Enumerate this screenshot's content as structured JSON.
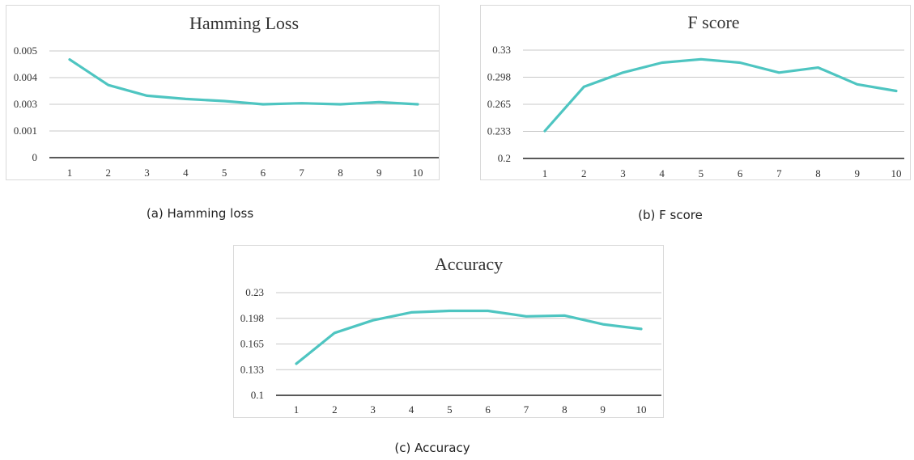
{
  "chart_data": [
    {
      "type": "line",
      "title": "Hamming Loss",
      "caption": "(a) Hamming loss",
      "categories": [
        "1",
        "2",
        "3",
        "4",
        "5",
        "6",
        "7",
        "8",
        "9",
        "10"
      ],
      "ytick_labels": [
        "0",
        "0.001",
        "0.003",
        "0.004",
        "0.005"
      ],
      "ylim": [
        0,
        0.005
      ],
      "series": [
        {
          "values": [
            0.0046,
            0.0034,
            0.0029,
            0.00275,
            0.00265,
            0.0025,
            0.00255,
            0.0025,
            0.0026,
            0.0025
          ]
        }
      ],
      "grid": true,
      "line_color": "#4ec5c1"
    },
    {
      "type": "line",
      "title": "F score",
      "caption": "(b)  F score",
      "categories": [
        "1",
        "2",
        "3",
        "4",
        "5",
        "6",
        "7",
        "8",
        "9",
        "10"
      ],
      "ytick_labels": [
        "0.2",
        "0.233",
        "0.265",
        "0.298",
        "0.33"
      ],
      "ylim": [
        0.2,
        0.33
      ],
      "series": [
        {
          "values": [
            0.233,
            0.286,
            0.303,
            0.315,
            0.319,
            0.315,
            0.303,
            0.309,
            0.289,
            0.281
          ]
        }
      ],
      "grid": true,
      "line_color": "#4ec5c1"
    },
    {
      "type": "line",
      "title": "Accuracy",
      "caption": "(c) Accuracy",
      "categories": [
        "1",
        "2",
        "3",
        "4",
        "5",
        "6",
        "7",
        "8",
        "9",
        "10"
      ],
      "ytick_labels": [
        "0.1",
        "0.133",
        "0.165",
        "0.198",
        "0.23"
      ],
      "ylim": [
        0.1,
        0.23
      ],
      "series": [
        {
          "values": [
            0.14,
            0.179,
            0.195,
            0.205,
            0.207,
            0.207,
            0.2,
            0.201,
            0.19,
            0.184
          ]
        }
      ],
      "grid": true,
      "line_color": "#4ec5c1"
    }
  ]
}
